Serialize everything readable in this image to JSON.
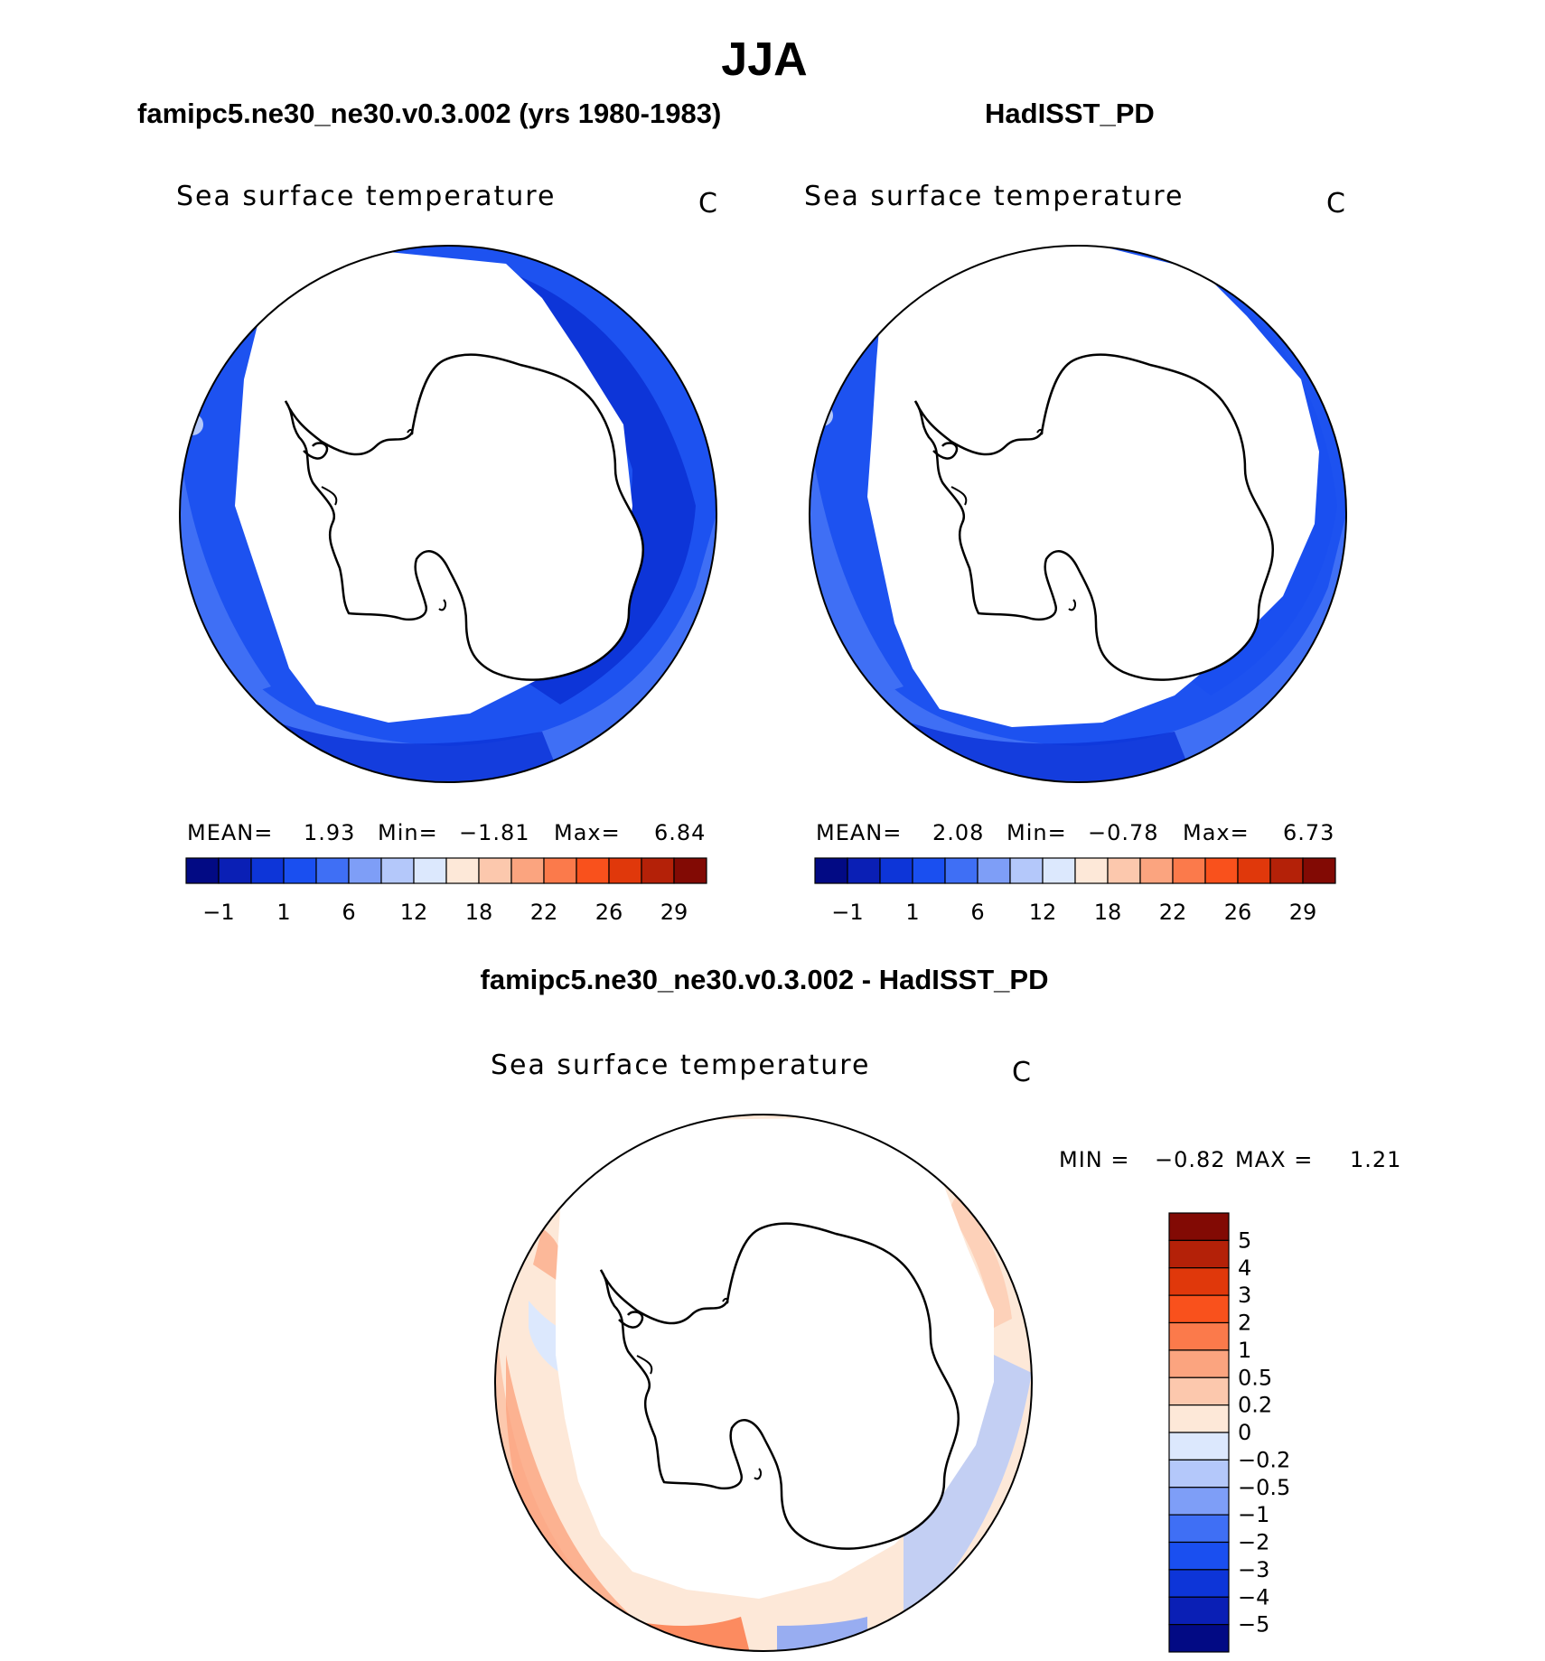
{
  "title": "JJA",
  "panels": [
    {
      "title": "famipc5.ne30_ne30.v0.3.002 (yrs 1980-1983)",
      "variable": "Sea surface temperature",
      "units": "C",
      "stats": {
        "mean_label": "MEAN=",
        "mean": "1.93",
        "min_label": "Min=",
        "min": "−1.81",
        "max_label": "Max=",
        "max": "6.84"
      }
    },
    {
      "title": "HadISST_PD",
      "variable": "Sea surface temperature",
      "units": "C",
      "stats": {
        "mean_label": "MEAN=",
        "mean": "2.08",
        "min_label": "Min=",
        "min": "−0.78",
        "max_label": "Max=",
        "max": "6.73"
      }
    }
  ],
  "colorbar": {
    "tick_labels": [
      "−1",
      "1",
      "6",
      "12",
      "18",
      "22",
      "26",
      "29"
    ],
    "colors": [
      "#020a84",
      "#0a1fb5",
      "#0d35d8",
      "#1a4ff0",
      "#3f6ff5",
      "#7e9ef7",
      "#b4c8fa",
      "#dce8fd",
      "#fde8d8",
      "#fcc8ad",
      "#fba47f",
      "#fb7a4b",
      "#f9511c",
      "#e0380b",
      "#b42108",
      "#820a04"
    ]
  },
  "difference": {
    "title": "famipc5.ne30_ne30.v0.3.002 - HadISST_PD",
    "variable": "Sea surface temperature",
    "units": "C",
    "stats": {
      "min_label": "MIN =",
      "min": "−0.82",
      "max_label": "MAX =",
      "max": "1.21"
    },
    "colorbar": {
      "tick_labels": [
        "5",
        "4",
        "3",
        "2",
        "1",
        "0.5",
        "0.2",
        "0",
        "−0.2",
        "−0.5",
        "−1",
        "−2",
        "−3",
        "−4",
        "−5"
      ],
      "colors": [
        "#820a04",
        "#b42108",
        "#e0380b",
        "#f9511c",
        "#fb7a4b",
        "#fba47f",
        "#fcc8ad",
        "#fde8d8",
        "#dce8fd",
        "#b4c8fa",
        "#7e9ef7",
        "#3f6ff5",
        "#1a4ff0",
        "#0d35d8",
        "#0a1fb5",
        "#020a84"
      ]
    }
  }
}
